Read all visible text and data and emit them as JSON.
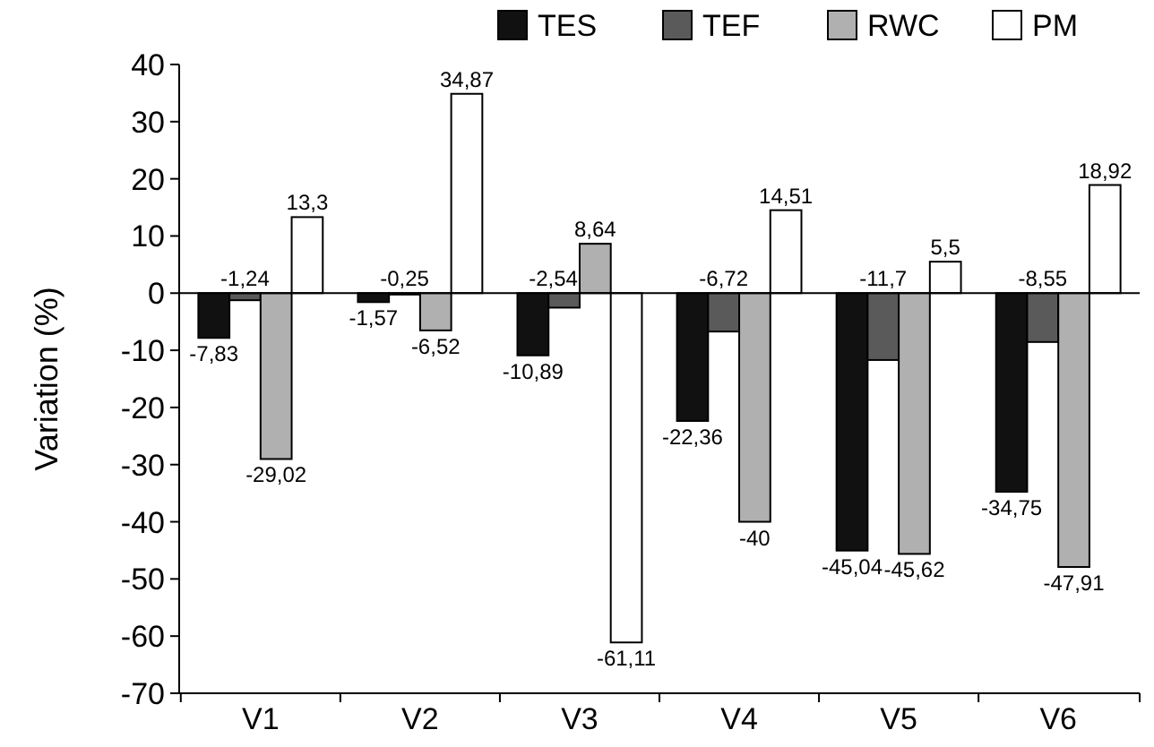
{
  "chart_data": {
    "type": "bar",
    "ylabel": "Variation (%)",
    "categories": [
      "V1",
      "V2",
      "V3",
      "V4",
      "V5",
      "V6"
    ],
    "series": [
      {
        "name": "TES",
        "color": "#111111",
        "values": [
          -7.83,
          -1.57,
          -10.89,
          -22.36,
          -45.04,
          -34.75
        ],
        "value_labels": [
          "-7,83",
          "-1,57",
          "-10,89",
          "-22,36",
          "-45,04",
          "-34,75"
        ]
      },
      {
        "name": "TEF",
        "color": "#5a5a5a",
        "values": [
          -1.24,
          -0.25,
          -2.54,
          -6.72,
          -11.7,
          -8.55
        ],
        "value_labels": [
          "-1,24",
          "-0,25",
          "-2,54",
          "-6,72",
          "-11,7",
          "-8,55"
        ]
      },
      {
        "name": "RWC",
        "color": "#b0b0b0",
        "values": [
          -29.02,
          -6.52,
          8.64,
          -40,
          -45.62,
          -47.91
        ],
        "value_labels": [
          "-29,02",
          "-6,52",
          "8,64",
          "-40",
          "-45,62",
          "-47,91"
        ]
      },
      {
        "name": "PM",
        "color": "#ffffff",
        "values": [
          13.3,
          34.87,
          -61.11,
          14.51,
          5.5,
          18.92
        ],
        "value_labels": [
          "13,3",
          "34,87",
          "-61,11",
          "14,51",
          "5,5",
          "18,92"
        ]
      }
    ],
    "ylim": [
      -70,
      40
    ],
    "yticks": [
      -70,
      -60,
      -50,
      -40,
      -30,
      -20,
      -10,
      0,
      10,
      20,
      30,
      40
    ],
    "legend": "top"
  }
}
